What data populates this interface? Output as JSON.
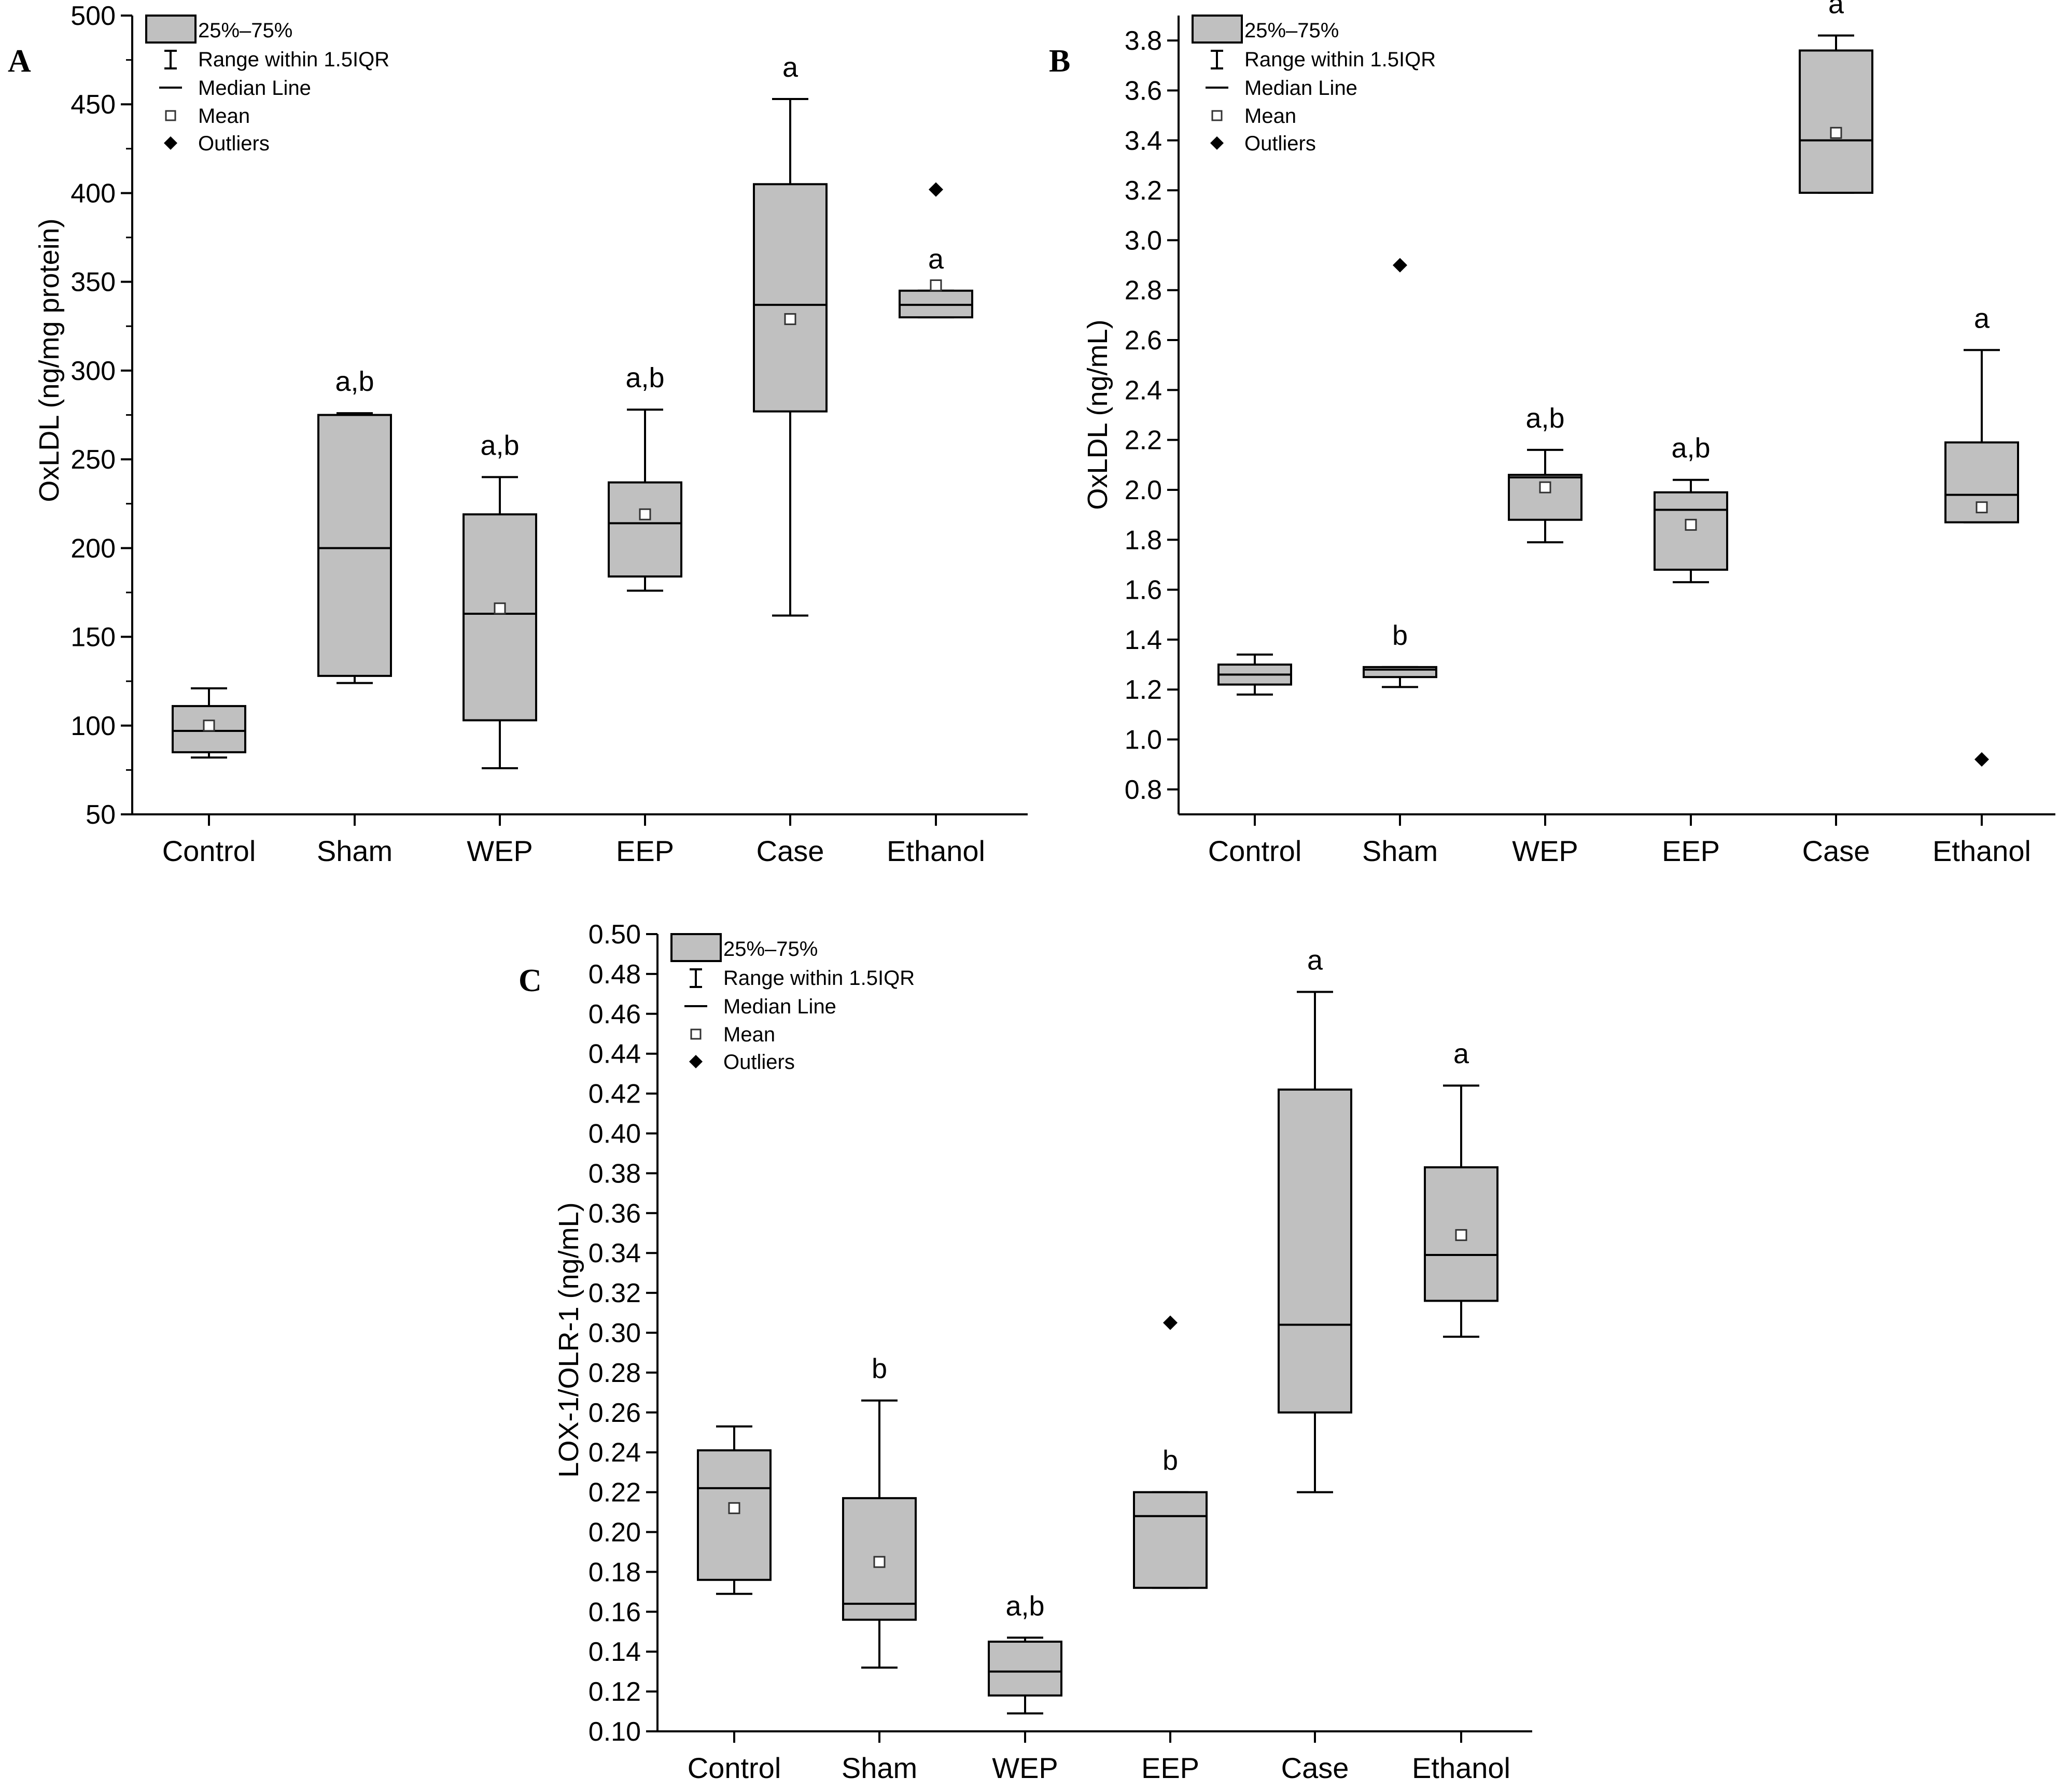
{
  "chart_data": [
    {
      "panel": "A",
      "type": "box",
      "ylabel": "OxLDL (ng/mg protein)",
      "xlabel": "",
      "ylim": [
        50,
        500
      ],
      "yticks": [
        "50",
        "100",
        "150",
        "200",
        "250",
        "300",
        "350",
        "400",
        "450",
        "500"
      ],
      "categories": [
        "Control",
        "Sham",
        "WEP",
        "EEP",
        "Case",
        "Ethanol"
      ],
      "boxes": [
        {
          "whisker_low": 82,
          "q1": 85,
          "median": 97,
          "q3": 111,
          "whisker_high": 121,
          "mean": 100,
          "outliers": [],
          "letter": ""
        },
        {
          "whisker_low": 124,
          "q1": 128,
          "median": 200,
          "q3": 275,
          "whisker_high": 276,
          "mean": null,
          "outliers": [],
          "letter": "a,b"
        },
        {
          "whisker_low": 76,
          "q1": 103,
          "median": 163,
          "q3": 219,
          "whisker_high": 240,
          "mean": 166,
          "outliers": [],
          "letter": "a,b"
        },
        {
          "whisker_low": 176,
          "q1": 184,
          "median": 214,
          "q3": 237,
          "whisker_high": 278,
          "mean": 219,
          "outliers": [],
          "letter": "a,b"
        },
        {
          "whisker_low": 162,
          "q1": 277,
          "median": 337,
          "q3": 405,
          "whisker_high": 453,
          "mean": 329,
          "outliers": [],
          "letter": "a"
        },
        {
          "whisker_low": 330,
          "q1": 330,
          "median": 337,
          "q3": 345,
          "whisker_high": 345,
          "mean": 348,
          "outliers": [
            402
          ],
          "letter": "a"
        }
      ],
      "legend": [
        "25%–75%",
        "Range within 1.5IQR",
        "Median Line",
        "Mean",
        "Outliers"
      ]
    },
    {
      "panel": "B",
      "type": "box",
      "ylabel": "OxLDL (ng/mL)",
      "xlabel": "",
      "ylim": [
        0.7,
        3.9
      ],
      "yticks": [
        "0.8",
        "1.0",
        "1.2",
        "1.4",
        "1.6",
        "1.8",
        "2.0",
        "2.2",
        "2.4",
        "2.6",
        "2.8",
        "3.0",
        "3.2",
        "3.4",
        "3.6",
        "3.8"
      ],
      "categories": [
        "Control",
        "Sham",
        "WEP",
        "EEP",
        "Case",
        "Ethanol"
      ],
      "boxes": [
        {
          "whisker_low": 1.18,
          "q1": 1.22,
          "median": 1.26,
          "q3": 1.3,
          "whisker_high": 1.34,
          "mean": null,
          "outliers": [],
          "letter": ""
        },
        {
          "whisker_low": 1.21,
          "q1": 1.25,
          "median": 1.28,
          "q3": 1.29,
          "whisker_high": 1.29,
          "mean": null,
          "outliers": [
            2.9
          ],
          "letter": "b"
        },
        {
          "whisker_low": 1.79,
          "q1": 1.88,
          "median": 2.05,
          "q3": 2.06,
          "whisker_high": 2.16,
          "mean": 2.01,
          "outliers": [],
          "letter": "a,b"
        },
        {
          "whisker_low": 1.63,
          "q1": 1.68,
          "median": 1.92,
          "q3": 1.99,
          "whisker_high": 2.04,
          "mean": 1.86,
          "outliers": [],
          "letter": "a,b"
        },
        {
          "whisker_low": 3.19,
          "q1": 3.19,
          "median": 3.4,
          "q3": 3.76,
          "whisker_high": 3.82,
          "mean": 3.43,
          "outliers": [],
          "letter": "a"
        },
        {
          "whisker_low": 1.87,
          "q1": 1.87,
          "median": 1.98,
          "q3": 2.19,
          "whisker_high": 2.56,
          "mean": 1.93,
          "outliers": [
            0.92
          ],
          "letter": "a"
        }
      ],
      "legend": [
        "25%–75%",
        "Range within 1.5IQR",
        "Median Line",
        "Mean",
        "Outliers"
      ]
    },
    {
      "panel": "C",
      "type": "box",
      "ylabel": "LOX-1/OLR-1 (ng/mL)",
      "xlabel": "",
      "ylim": [
        0.1,
        0.5
      ],
      "yticks": [
        "0.10",
        "0.12",
        "0.14",
        "0.16",
        "0.18",
        "0.20",
        "0.22",
        "0.24",
        "0.26",
        "0.28",
        "0.30",
        "0.32",
        "0.34",
        "0.36",
        "0.38",
        "0.40",
        "0.42",
        "0.44",
        "0.46",
        "0.48",
        "0.50"
      ],
      "categories": [
        "Control",
        "Sham",
        "WEP",
        "EEP",
        "Case",
        "Ethanol"
      ],
      "boxes": [
        {
          "whisker_low": 0.169,
          "q1": 0.176,
          "median": 0.222,
          "q3": 0.241,
          "whisker_high": 0.253,
          "mean": 0.212,
          "outliers": [],
          "letter": ""
        },
        {
          "whisker_low": 0.132,
          "q1": 0.156,
          "median": 0.164,
          "q3": 0.217,
          "whisker_high": 0.266,
          "mean": 0.185,
          "outliers": [],
          "letter": "b"
        },
        {
          "whisker_low": 0.109,
          "q1": 0.118,
          "median": 0.13,
          "q3": 0.145,
          "whisker_high": 0.147,
          "mean": null,
          "outliers": [],
          "letter": "a,b"
        },
        {
          "whisker_low": 0.172,
          "q1": 0.172,
          "median": 0.208,
          "q3": 0.22,
          "whisker_high": 0.22,
          "mean": null,
          "outliers": [
            0.305
          ],
          "letter": "b"
        },
        {
          "whisker_low": 0.22,
          "q1": 0.26,
          "median": 0.304,
          "q3": 0.422,
          "whisker_high": 0.471,
          "mean": null,
          "outliers": [],
          "letter": "a"
        },
        {
          "whisker_low": 0.298,
          "q1": 0.316,
          "median": 0.339,
          "q3": 0.383,
          "whisker_high": 0.424,
          "mean": 0.349,
          "outliers": [],
          "letter": "a"
        }
      ],
      "legend": [
        "25%–75%",
        "Range within 1.5IQR",
        "Median Line",
        "Mean",
        "Outliers"
      ]
    }
  ],
  "colors": {
    "box_fill": "#c0c0c0",
    "stroke": "#000000",
    "mean_fill": "#ffffff"
  }
}
